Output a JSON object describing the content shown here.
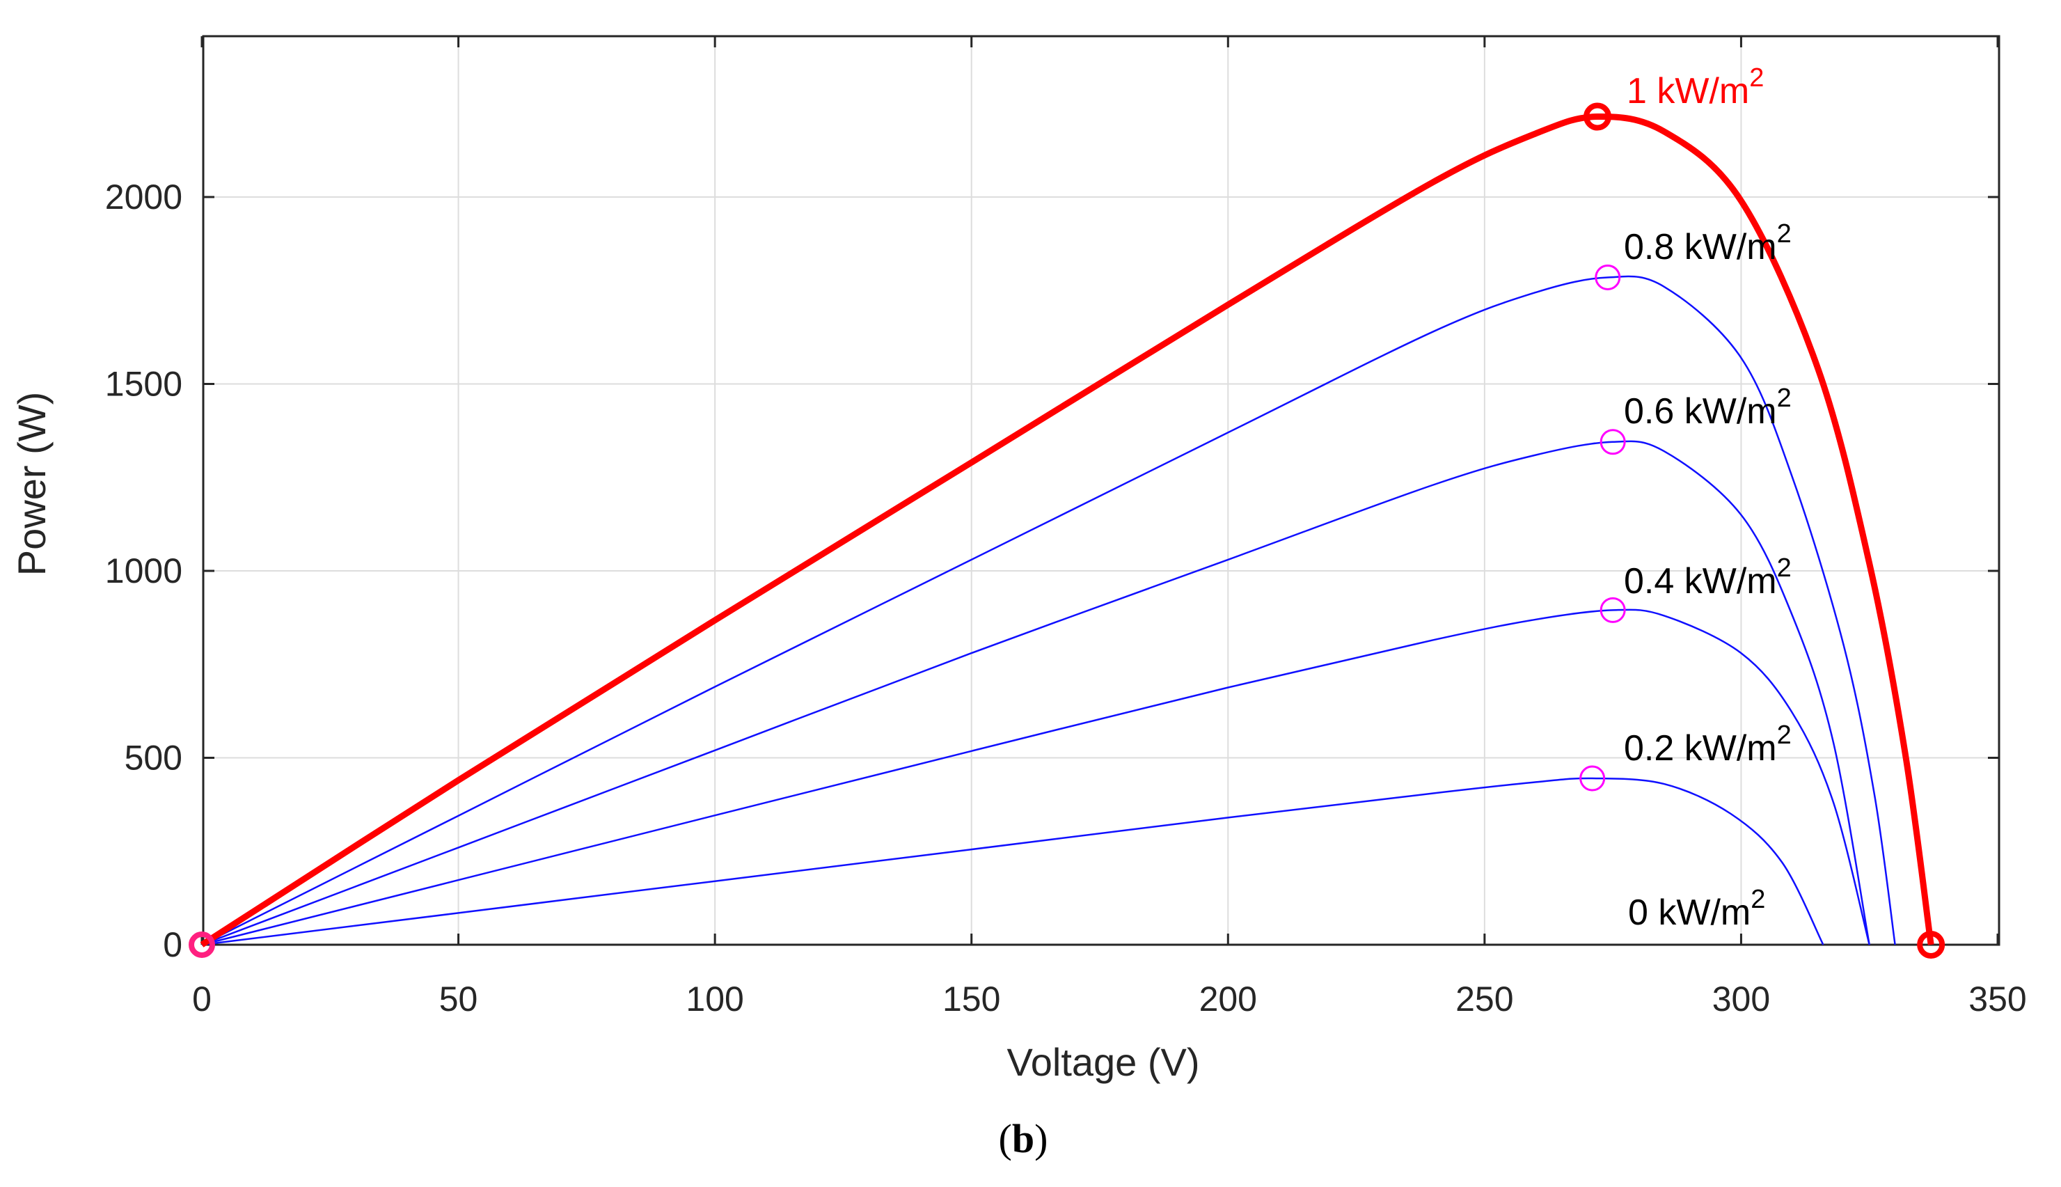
{
  "chart_data": {
    "type": "line",
    "title": "",
    "xlabel": "Voltage (V)",
    "ylabel": "Power (W)",
    "xlim": [
      0,
      350
    ],
    "ylim": [
      0,
      2350
    ],
    "xticks": [
      0,
      50,
      100,
      150,
      200,
      250,
      300,
      350
    ],
    "yticks": [
      0,
      500,
      1000,
      1500,
      2000
    ],
    "xtick_labels": [
      "0",
      "50",
      "100",
      "150",
      "200",
      "250",
      "300",
      "350"
    ],
    "ytick_labels": [
      "0",
      "500",
      "1000",
      "1500",
      "2000"
    ],
    "grid": true,
    "series": [
      {
        "name": "1 kW/m2",
        "label_text": "1 kW/m",
        "label_sup": "2",
        "color": "#ff0000",
        "bold": true,
        "mpp": [
          272,
          2215
        ],
        "voc": 337,
        "points": [
          [
            0,
            0
          ],
          [
            50,
            440
          ],
          [
            100,
            868
          ],
          [
            150,
            1290
          ],
          [
            200,
            1712
          ],
          [
            240,
            2040
          ],
          [
            260,
            2170
          ],
          [
            272,
            2215
          ],
          [
            285,
            2175
          ],
          [
            300,
            1990
          ],
          [
            315,
            1540
          ],
          [
            325,
            1020
          ],
          [
            332,
            510
          ],
          [
            337,
            0
          ]
        ]
      },
      {
        "name": "0.8 kW/m2",
        "label_text": "0.8 kW/m",
        "label_sup": "2",
        "color": "#1010ff",
        "bold": false,
        "mpp": [
          274,
          1785
        ],
        "voc": 330,
        "points": [
          [
            0,
            0
          ],
          [
            50,
            345
          ],
          [
            100,
            690
          ],
          [
            150,
            1030
          ],
          [
            200,
            1370
          ],
          [
            240,
            1640
          ],
          [
            260,
            1745
          ],
          [
            274,
            1785
          ],
          [
            285,
            1760
          ],
          [
            300,
            1570
          ],
          [
            310,
            1250
          ],
          [
            320,
            800
          ],
          [
            326,
            400
          ],
          [
            330,
            0
          ]
        ]
      },
      {
        "name": "0.6 kW/m2",
        "label_text": "0.6 kW/m",
        "label_sup": "2",
        "color": "#1010ff",
        "bold": false,
        "mpp": [
          275,
          1345
        ],
        "voc": 325,
        "points": [
          [
            0,
            0
          ],
          [
            50,
            260
          ],
          [
            100,
            520
          ],
          [
            150,
            780
          ],
          [
            200,
            1030
          ],
          [
            240,
            1230
          ],
          [
            260,
            1310
          ],
          [
            275,
            1345
          ],
          [
            285,
            1320
          ],
          [
            300,
            1150
          ],
          [
            310,
            880
          ],
          [
            318,
            540
          ],
          [
            325,
            0
          ]
        ]
      },
      {
        "name": "0.4 kW/m2",
        "label_text": "0.4 kW/m",
        "label_sup": "2",
        "color": "#1010ff",
        "bold": false,
        "mpp": [
          275,
          895
        ],
        "voc": 325,
        "points": [
          [
            0,
            0
          ],
          [
            50,
            173
          ],
          [
            100,
            346
          ],
          [
            150,
            518
          ],
          [
            200,
            688
          ],
          [
            240,
            815
          ],
          [
            260,
            870
          ],
          [
            275,
            895
          ],
          [
            285,
            880
          ],
          [
            300,
            780
          ],
          [
            310,
            620
          ],
          [
            318,
            380
          ],
          [
            325,
            0
          ]
        ]
      },
      {
        "name": "0.2 kW/m2",
        "label_text": "0.2 kW/m",
        "label_sup": "2",
        "color": "#1010ff",
        "bold": false,
        "mpp": [
          271,
          445
        ],
        "voc": 316,
        "points": [
          [
            0,
            0
          ],
          [
            50,
            85
          ],
          [
            100,
            170
          ],
          [
            150,
            255
          ],
          [
            200,
            340
          ],
          [
            240,
            405
          ],
          [
            260,
            435
          ],
          [
            271,
            445
          ],
          [
            285,
            430
          ],
          [
            298,
            350
          ],
          [
            308,
            220
          ],
          [
            316,
            0
          ]
        ]
      }
    ],
    "annotations": [
      {
        "text": "1 kW/m",
        "sup": "2",
        "color": "#ff0000"
      },
      {
        "text": "0.8 kW/m",
        "sup": "2",
        "color": "#000000"
      },
      {
        "text": "0.6 kW/m",
        "sup": "2",
        "color": "#000000"
      },
      {
        "text": "0.4 kW/m",
        "sup": "2",
        "color": "#000000"
      },
      {
        "text": "0.2 kW/m",
        "sup": "2",
        "color": "#000000"
      },
      {
        "text": "0 kW/m",
        "sup": "2",
        "color": "#000000"
      }
    ],
    "origin_marker": [
      0,
      0
    ],
    "end_marker": [
      337,
      0
    ]
  },
  "caption": {
    "open": "(",
    "letter": "b",
    "close": ")"
  },
  "colors": {
    "grid": "#dddddd",
    "axis": "#262626",
    "mpp_marker": "#ff00ff",
    "bold_marker": "#ff0000",
    "origin_marker": "#ff2080"
  }
}
